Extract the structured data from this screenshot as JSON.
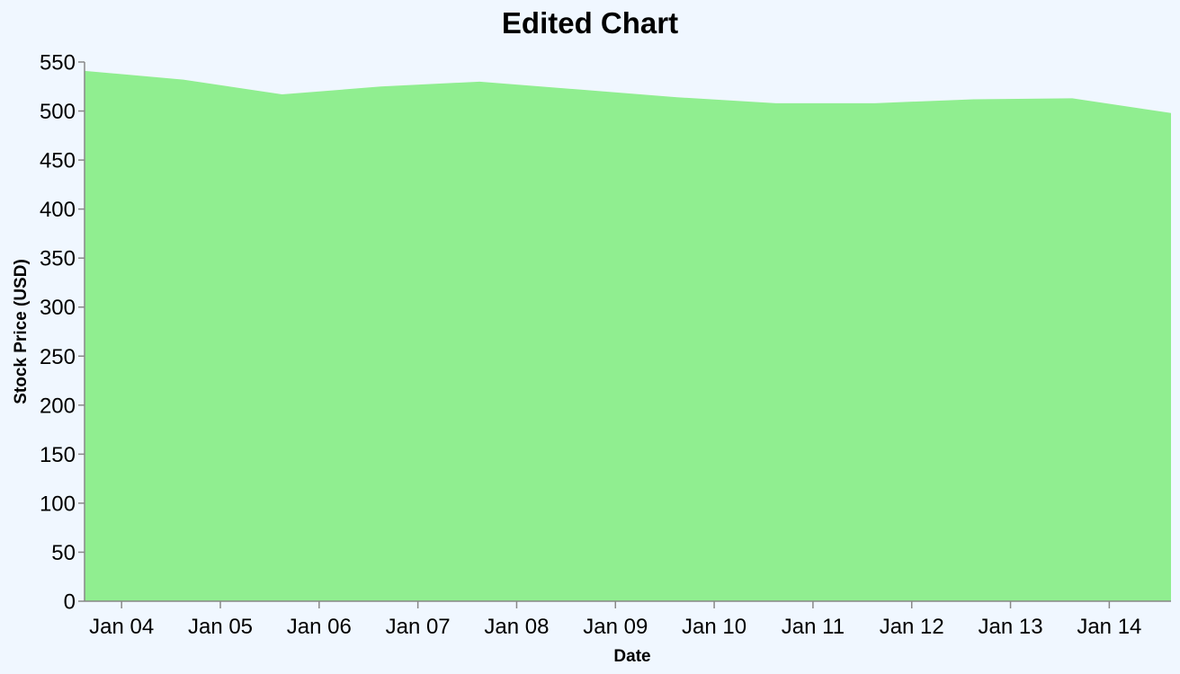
{
  "chart_data": {
    "type": "area",
    "title": "Edited Chart",
    "xlabel": "Date",
    "ylabel": "Stock Price (USD)",
    "x": [
      "2024-01-03 15:00",
      "2024-01-04 15:00",
      "2024-01-05 15:00",
      "2024-01-06 15:00",
      "2024-01-07 15:00",
      "2024-01-08 15:00",
      "2024-01-09 15:00",
      "2024-01-10 15:00",
      "2024-01-11 15:00",
      "2024-01-12 15:00",
      "2024-01-13 15:00",
      "2024-01-14 15:00"
    ],
    "series": [
      {
        "values": [
          541,
          532,
          517,
          525,
          530,
          522,
          514,
          508,
          508,
          512,
          513,
          498
        ]
      }
    ],
    "x_ticks": [
      "Jan 04",
      "Jan 05",
      "Jan 06",
      "Jan 07",
      "Jan 08",
      "Jan 09",
      "Jan 10",
      "Jan 11",
      "Jan 12",
      "Jan 13",
      "Jan 14"
    ],
    "y_ticks": [
      0,
      50,
      100,
      150,
      200,
      250,
      300,
      350,
      400,
      450,
      500,
      550
    ],
    "ylim": [
      0,
      550
    ],
    "grid": false,
    "colors": {
      "area": "#90ee90",
      "background": "#f0f7ff",
      "axis": "#888888"
    }
  }
}
